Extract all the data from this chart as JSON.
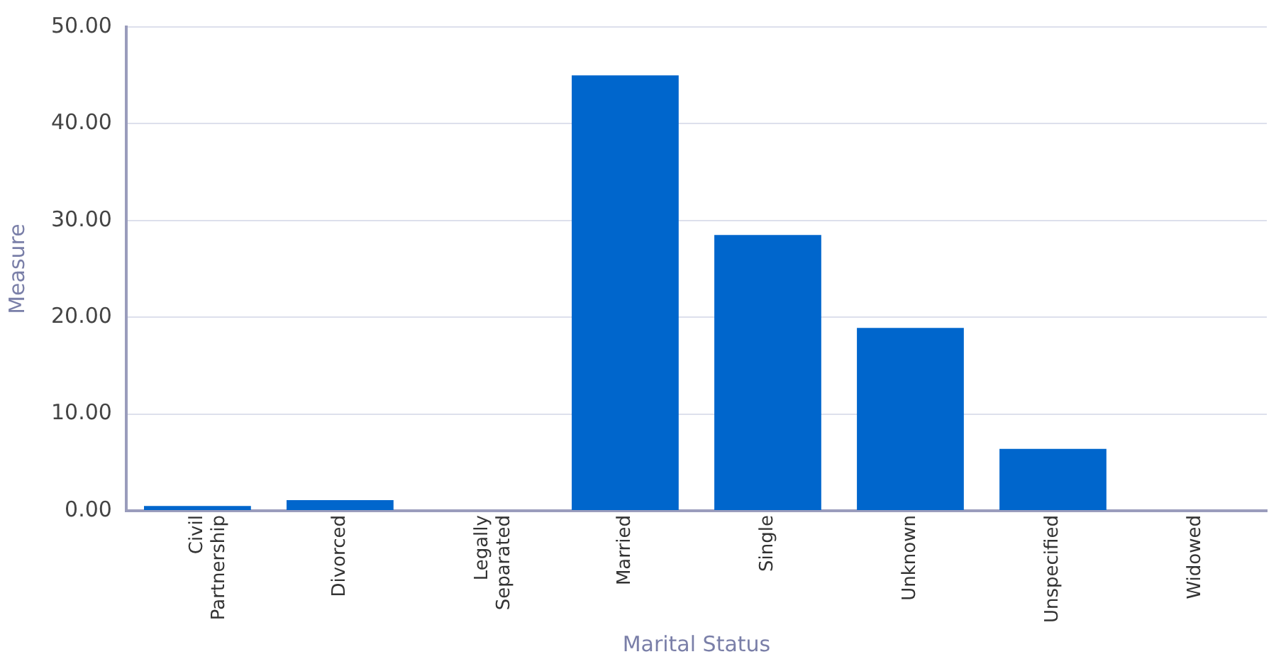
{
  "chart_data": {
    "type": "bar",
    "xlabel": "Marital Status",
    "ylabel": "Measure",
    "categories": [
      "Civil Partnership",
      "Divorced",
      "Legally Separated",
      "Married",
      "Single",
      "Unknown",
      "Unspecified",
      "Widowed"
    ],
    "values": [
      0.5,
      1.1,
      0,
      45,
      28.5,
      18.9,
      6.4,
      0
    ],
    "color": "#0066cc",
    "ylim": [
      0,
      50
    ],
    "yticks": [
      {
        "value": 0,
        "label": "0.00"
      },
      {
        "value": 10,
        "label": "10.00"
      },
      {
        "value": 20,
        "label": "20.00"
      },
      {
        "value": 30,
        "label": "30.00"
      },
      {
        "value": 40,
        "label": "40.00"
      },
      {
        "value": 50,
        "label": "50.00"
      }
    ],
    "grid": "y",
    "legend": false
  }
}
